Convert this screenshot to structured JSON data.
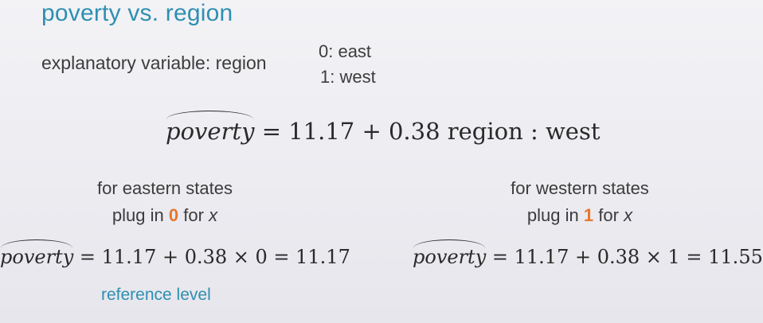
{
  "slide": {
    "title": "poverty vs. region",
    "explanatory_label": "explanatory variable: region",
    "codes": {
      "east": "0: east",
      "west": "1: west"
    },
    "main_equation": {
      "lhs": "poverty",
      "rhs": "= 11.17 + 0.38 region : west"
    },
    "eastern": {
      "line1": "for eastern states",
      "plug_prefix": "plug in",
      "plug_value": "0",
      "plug_suffix": "for",
      "plug_var": "x",
      "eq_lhs": "poverty",
      "eq_rhs": "= 11.17 + 0.38 × 0 = 11.17",
      "note": "reference level"
    },
    "western": {
      "line1": "for western states",
      "plug_prefix": "plug in",
      "plug_value": "1",
      "plug_suffix": "for",
      "plug_var": "x",
      "eq_lhs": "poverty",
      "eq_rhs": "= 11.17 + 0.38 × 1 = 11.55"
    },
    "colors": {
      "title": "#2f8fb0",
      "highlight": "#e8762c",
      "text": "#3c3c3c"
    }
  }
}
